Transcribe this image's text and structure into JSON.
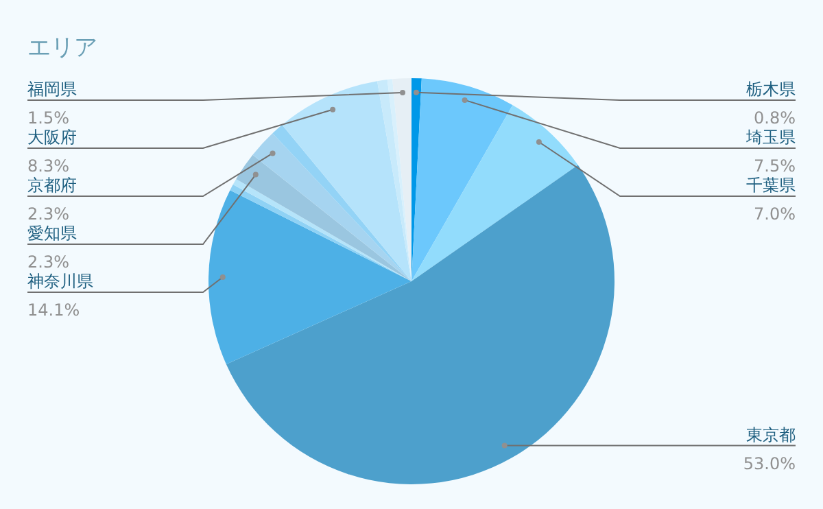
{
  "chart_data": {
    "type": "pie",
    "title": "エリア",
    "categories": [
      "栃木県",
      "埼玉県",
      "千葉県",
      "東京都",
      "神奈川県",
      null,
      null,
      "愛知県",
      "京都府",
      null,
      "大阪府",
      null,
      null,
      "福岡県"
    ],
    "values": [
      0.8,
      7.5,
      7.0,
      53.0,
      14.1,
      0.5,
      0.5,
      2.3,
      2.3,
      1.0,
      8.3,
      0.8,
      0.4,
      1.5
    ],
    "value_labels": [
      "0.8%",
      "7.5%",
      "7.0%",
      "53.0%",
      "14.1%",
      null,
      null,
      "2.3%",
      "2.3%",
      null,
      "8.3%",
      null,
      null,
      "1.5%"
    ],
    "colors": [
      "#0098e8",
      "#6cc8fc",
      "#92dcfc",
      "#4da0cc",
      "#4db0e6",
      "#8fd2f5",
      "#b5e4fa",
      "#9ac6e0",
      "#a6d4f0",
      "#93d3f6",
      "#b5e3fb",
      "#c8eafb",
      "#d8f0fc",
      "#e6eff5"
    ]
  }
}
